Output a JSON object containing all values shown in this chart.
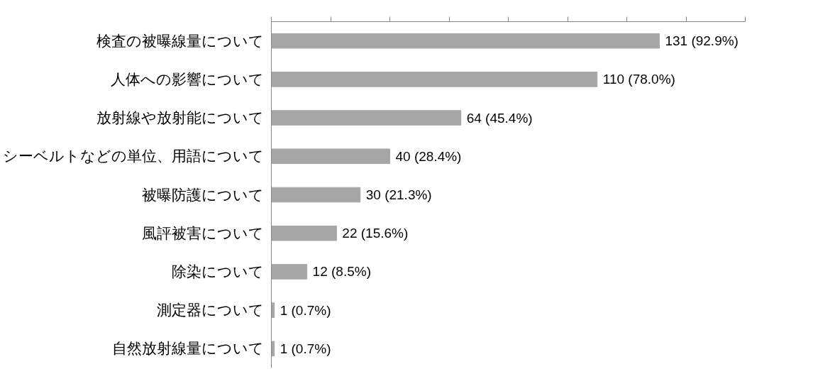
{
  "chart_data": {
    "type": "bar",
    "orientation": "horizontal",
    "categories": [
      "検査の被曝線量について",
      "人体への影響について",
      "放射線や放射能について",
      "シーベルトなどの単位、用語について",
      "被曝防護について",
      "風評被害について",
      "除染について",
      "測定器について",
      "自然放射線量について"
    ],
    "values": [
      131,
      110,
      64,
      40,
      30,
      22,
      12,
      1,
      1
    ],
    "value_labels": [
      "131 (92.9%)",
      "110 (78.0%)",
      "64 (45.4%)",
      "40 (28.4%)",
      "30 (21.3%)",
      "22 (15.6%)",
      "12 (8.5%)",
      "1 (0.7%)",
      "1 (0.7%)"
    ],
    "color": "#a6a6a6",
    "xlim": [
      0,
      160
    ],
    "xticks": [
      {
        "value": 0,
        "label": null
      },
      {
        "value": 20,
        "label": null
      },
      {
        "value": 40,
        "label": null
      },
      {
        "value": 60,
        "label": null
      },
      {
        "value": 80,
        "label": null
      },
      {
        "value": 100,
        "label": null
      },
      {
        "value": 120,
        "label": null
      },
      {
        "value": 140,
        "label": null
      },
      {
        "value": 160,
        "label": null
      }
    ],
    "tick_labels": "y",
    "grid": false
  }
}
